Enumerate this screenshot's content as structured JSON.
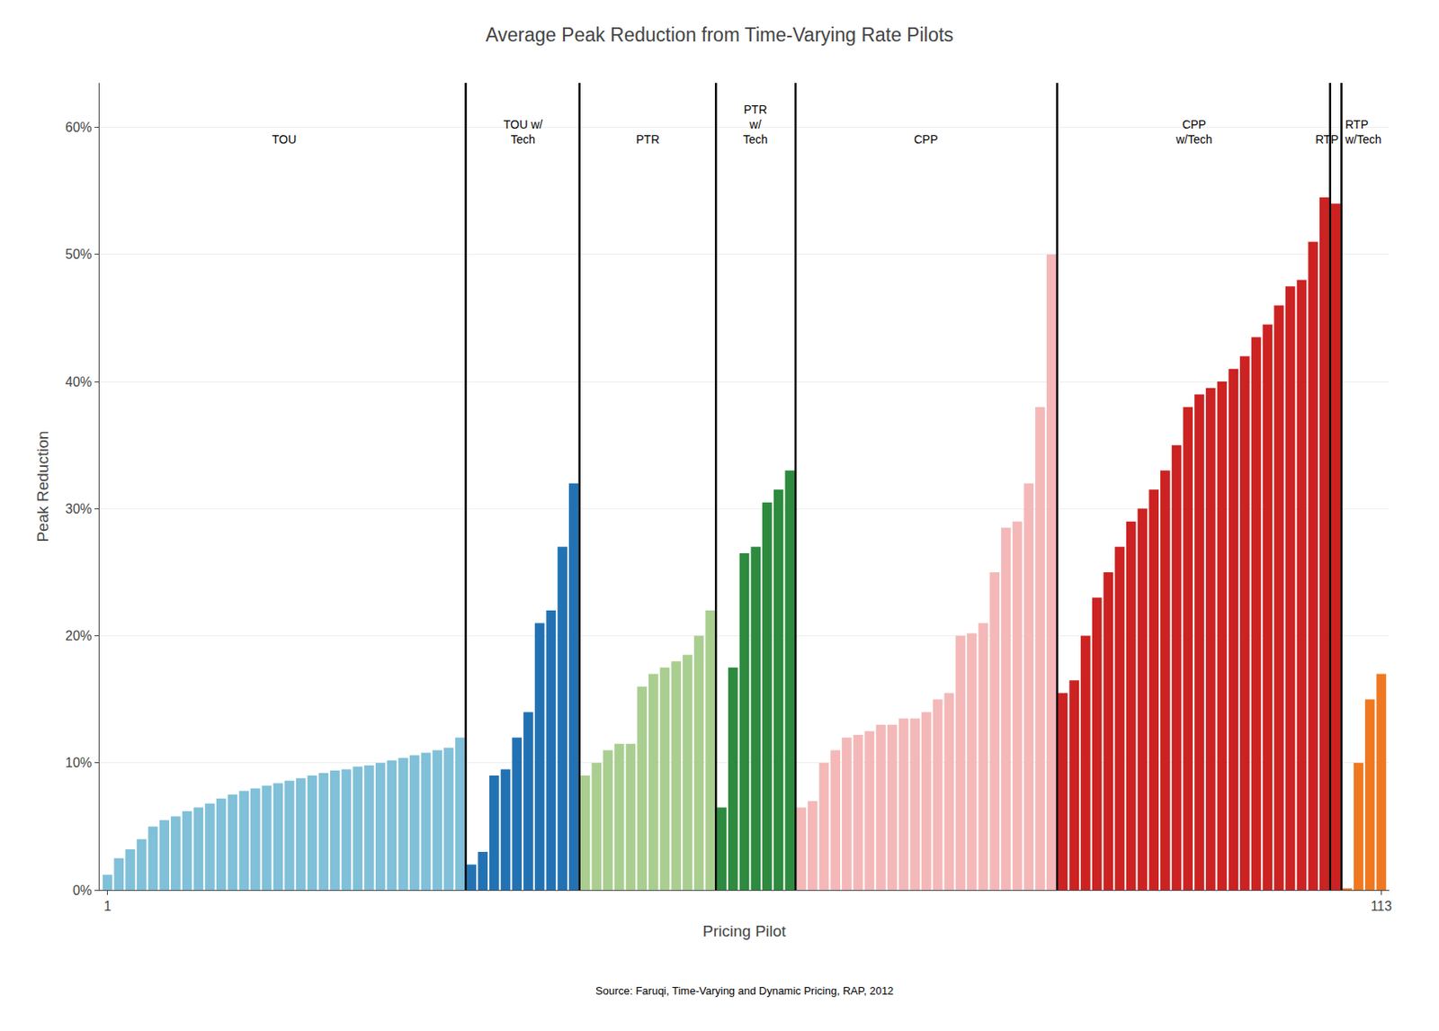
{
  "chart_data": {
    "type": "bar",
    "title": "Average Peak Reduction from Time-Varying Rate Pilots",
    "xlabel": "Pricing Pilot",
    "ylabel": "Peak Reduction",
    "ylim": [
      0,
      0.635
    ],
    "yticks": [
      {
        "value": 0.0,
        "label": "0%"
      },
      {
        "value": 0.1,
        "label": "10%"
      },
      {
        "value": 0.2,
        "label": "20%"
      },
      {
        "value": 0.3,
        "label": "30%"
      },
      {
        "value": 0.4,
        "label": "40%"
      },
      {
        "value": 0.5,
        "label": "50%"
      },
      {
        "value": 0.6,
        "label": "60%"
      }
    ],
    "grid": true,
    "annotations": [
      "Source: Faruqi, Time-Varying and Dynamic Pricing, RAP, 2012"
    ],
    "categories": [
      "1",
      null,
      null,
      null,
      null,
      null,
      null,
      null,
      null,
      null,
      null,
      null,
      null,
      null,
      null,
      null,
      null,
      null,
      null,
      null,
      null,
      null,
      null,
      null,
      null,
      null,
      null,
      null,
      null,
      null,
      null,
      null,
      null,
      null,
      null,
      null,
      null,
      null,
      null,
      null,
      null,
      null,
      null,
      null,
      null,
      null,
      null,
      null,
      null,
      null,
      null,
      null,
      null,
      null,
      null,
      null,
      null,
      null,
      null,
      null,
      null,
      null,
      null,
      null,
      null,
      null,
      null,
      null,
      null,
      null,
      null,
      null,
      null,
      null,
      null,
      null,
      null,
      null,
      null,
      null,
      null,
      null,
      null,
      null,
      null,
      null,
      null,
      null,
      null,
      null,
      null,
      null,
      null,
      null,
      null,
      null,
      null,
      null,
      null,
      null,
      null,
      null,
      null,
      null,
      null,
      null,
      null,
      null,
      null,
      null,
      null,
      null,
      "113"
    ],
    "series": [
      {
        "name": "TOU",
        "color": "#80c0d8",
        "values": [
          0.012,
          0.025,
          0.032,
          0.04,
          0.05,
          0.055,
          0.058,
          0.062,
          0.065,
          0.068,
          0.072,
          0.075,
          0.078,
          0.08,
          0.082,
          0.084,
          0.086,
          0.088,
          0.09,
          0.092,
          0.094,
          0.095,
          0.097,
          0.098,
          0.1,
          0.102,
          0.104,
          0.106,
          0.108,
          0.11,
          0.112,
          0.12,
          null,
          null,
          null,
          null,
          null,
          null,
          null,
          null,
          null,
          null,
          null,
          null,
          null,
          null,
          null,
          null,
          null,
          null,
          null,
          null,
          null,
          null,
          null,
          null,
          null,
          null,
          null,
          null,
          null,
          null,
          null,
          null,
          null,
          null,
          null,
          null,
          null,
          null,
          null,
          null,
          null,
          null,
          null,
          null,
          null,
          null,
          null,
          null,
          null,
          null,
          null,
          null,
          null,
          null,
          null,
          null,
          null,
          null,
          null,
          null,
          null,
          null,
          null,
          null,
          null,
          null,
          null,
          null,
          null,
          null,
          null,
          null,
          null,
          null,
          null,
          null,
          null,
          null,
          null,
          null,
          null
        ]
      },
      {
        "name": "TOU w/\nTech",
        "color": "#2272b3",
        "values": [
          null,
          null,
          null,
          null,
          null,
          null,
          null,
          null,
          null,
          null,
          null,
          null,
          null,
          null,
          null,
          null,
          null,
          null,
          null,
          null,
          null,
          null,
          null,
          null,
          null,
          null,
          null,
          null,
          null,
          null,
          null,
          null,
          0.02,
          0.03,
          0.09,
          0.095,
          0.12,
          0.14,
          0.21,
          0.22,
          0.27,
          0.32,
          null,
          null,
          null,
          null,
          null,
          null,
          null,
          null,
          null,
          null,
          null,
          null,
          null,
          null,
          null,
          null,
          null,
          null,
          null,
          null,
          null,
          null,
          null,
          null,
          null,
          null,
          null,
          null,
          null,
          null,
          null,
          null,
          null,
          null,
          null,
          null,
          null,
          null,
          null,
          null,
          null,
          null,
          null,
          null,
          null,
          null,
          null,
          null,
          null,
          null,
          null,
          null,
          null,
          null,
          null,
          null,
          null,
          null,
          null,
          null,
          null,
          null,
          null,
          null,
          null,
          null,
          null,
          null,
          null,
          null,
          null
        ]
      },
      {
        "name": "PTR",
        "color": "#aace90",
        "values": [
          null,
          null,
          null,
          null,
          null,
          null,
          null,
          null,
          null,
          null,
          null,
          null,
          null,
          null,
          null,
          null,
          null,
          null,
          null,
          null,
          null,
          null,
          null,
          null,
          null,
          null,
          null,
          null,
          null,
          null,
          null,
          null,
          null,
          null,
          null,
          null,
          null,
          null,
          null,
          null,
          null,
          null,
          0.09,
          0.1,
          0.11,
          0.115,
          0.115,
          0.16,
          0.17,
          0.175,
          0.18,
          0.185,
          0.2,
          0.22,
          null,
          null,
          null,
          null,
          null,
          null,
          null,
          null,
          null,
          null,
          null,
          null,
          null,
          null,
          null,
          null,
          null,
          null,
          null,
          null,
          null,
          null,
          null,
          null,
          null,
          null,
          null,
          null,
          null,
          null,
          null,
          null,
          null,
          null,
          null,
          null,
          null,
          null,
          null,
          null,
          null,
          null,
          null,
          null,
          null,
          null,
          null,
          null,
          null,
          null,
          null,
          null,
          null,
          null,
          null,
          null,
          null,
          null,
          null
        ]
      },
      {
        "name": "PTR\nw/\nTech",
        "color": "#2d8a3e",
        "values": [
          null,
          null,
          null,
          null,
          null,
          null,
          null,
          null,
          null,
          null,
          null,
          null,
          null,
          null,
          null,
          null,
          null,
          null,
          null,
          null,
          null,
          null,
          null,
          null,
          null,
          null,
          null,
          null,
          null,
          null,
          null,
          null,
          null,
          null,
          null,
          null,
          null,
          null,
          null,
          null,
          null,
          null,
          null,
          null,
          null,
          null,
          null,
          null,
          null,
          null,
          null,
          null,
          null,
          null,
          0.065,
          0.175,
          0.265,
          0.27,
          0.305,
          0.315,
          0.33,
          null,
          null,
          null,
          null,
          null,
          null,
          null,
          null,
          null,
          null,
          null,
          null,
          null,
          null,
          null,
          null,
          null,
          null,
          null,
          null,
          null,
          null,
          null,
          null,
          null,
          null,
          null,
          null,
          null,
          null,
          null,
          null,
          null,
          null,
          null,
          null,
          null,
          null,
          null,
          null,
          null,
          null,
          null,
          null,
          null,
          null,
          null,
          null,
          null,
          null,
          null,
          null
        ]
      },
      {
        "name": "CPP",
        "color": "#f4b8b8",
        "values": [
          null,
          null,
          null,
          null,
          null,
          null,
          null,
          null,
          null,
          null,
          null,
          null,
          null,
          null,
          null,
          null,
          null,
          null,
          null,
          null,
          null,
          null,
          null,
          null,
          null,
          null,
          null,
          null,
          null,
          null,
          null,
          null,
          null,
          null,
          null,
          null,
          null,
          null,
          null,
          null,
          null,
          null,
          null,
          null,
          null,
          null,
          null,
          null,
          null,
          null,
          null,
          null,
          null,
          null,
          null,
          null,
          null,
          null,
          null,
          null,
          null,
          0.065,
          0.07,
          0.1,
          0.11,
          0.12,
          0.122,
          0.125,
          0.13,
          0.13,
          0.135,
          0.135,
          0.14,
          0.15,
          0.155,
          0.2,
          0.202,
          0.21,
          0.25,
          0.285,
          0.29,
          0.32,
          0.38,
          0.5,
          null,
          null,
          null,
          null,
          null,
          null,
          null,
          null,
          null,
          null,
          null,
          null,
          null,
          null,
          null,
          null,
          null,
          null,
          null,
          null,
          null,
          null,
          null,
          null,
          null,
          null,
          null,
          null,
          null
        ]
      },
      {
        "name": "CPP\nw/Tech",
        "color": "#cc2222",
        "values": [
          null,
          null,
          null,
          null,
          null,
          null,
          null,
          null,
          null,
          null,
          null,
          null,
          null,
          null,
          null,
          null,
          null,
          null,
          null,
          null,
          null,
          null,
          null,
          null,
          null,
          null,
          null,
          null,
          null,
          null,
          null,
          null,
          null,
          null,
          null,
          null,
          null,
          null,
          null,
          null,
          null,
          null,
          null,
          null,
          null,
          null,
          null,
          null,
          null,
          null,
          null,
          null,
          null,
          null,
          null,
          null,
          null,
          null,
          null,
          null,
          null,
          null,
          null,
          null,
          null,
          null,
          null,
          null,
          null,
          null,
          null,
          null,
          null,
          null,
          null,
          null,
          null,
          null,
          null,
          null,
          null,
          null,
          null,
          null,
          0.155,
          0.165,
          0.2,
          0.23,
          0.25,
          0.27,
          0.29,
          0.3,
          0.315,
          0.33,
          0.35,
          0.38,
          0.39,
          0.395,
          0.4,
          0.41,
          0.42,
          0.435,
          0.445,
          0.46,
          0.475,
          0.48,
          0.51,
          0.545,
          null,
          null,
          null,
          null,
          null
        ]
      },
      {
        "name": "RTP",
        "color": "#cc2222",
        "values": [
          null,
          null,
          null,
          null,
          null,
          null,
          null,
          null,
          null,
          null,
          null,
          null,
          null,
          null,
          null,
          null,
          null,
          null,
          null,
          null,
          null,
          null,
          null,
          null,
          null,
          null,
          null,
          null,
          null,
          null,
          null,
          null,
          null,
          null,
          null,
          null,
          null,
          null,
          null,
          null,
          null,
          null,
          null,
          null,
          null,
          null,
          null,
          null,
          null,
          null,
          null,
          null,
          null,
          null,
          null,
          null,
          null,
          null,
          null,
          null,
          null,
          null,
          null,
          null,
          null,
          null,
          null,
          null,
          null,
          null,
          null,
          null,
          null,
          null,
          null,
          null,
          null,
          null,
          null,
          null,
          null,
          null,
          null,
          null,
          null,
          null,
          null,
          null,
          null,
          null,
          null,
          null,
          null,
          null,
          null,
          null,
          null,
          null,
          null,
          null,
          null,
          null,
          null,
          null,
          null,
          null,
          null,
          null,
          0.54,
          null,
          null,
          null,
          null
        ]
      },
      {
        "name": "RTP\nw/Tech",
        "color": "#f07820",
        "values": [
          null,
          null,
          null,
          null,
          null,
          null,
          null,
          null,
          null,
          null,
          null,
          null,
          null,
          null,
          null,
          null,
          null,
          null,
          null,
          null,
          null,
          null,
          null,
          null,
          null,
          null,
          null,
          null,
          null,
          null,
          null,
          null,
          null,
          null,
          null,
          null,
          null,
          null,
          null,
          null,
          null,
          null,
          null,
          null,
          null,
          null,
          null,
          null,
          null,
          null,
          null,
          null,
          null,
          null,
          null,
          null,
          null,
          null,
          null,
          null,
          null,
          null,
          null,
          null,
          null,
          null,
          null,
          null,
          null,
          null,
          null,
          null,
          null,
          null,
          null,
          null,
          null,
          null,
          null,
          null,
          null,
          null,
          null,
          null,
          null,
          null,
          null,
          null,
          null,
          null,
          null,
          null,
          null,
          null,
          null,
          null,
          null,
          null,
          null,
          null,
          null,
          null,
          null,
          null,
          null,
          null,
          null,
          null,
          null,
          0.001,
          0.1,
          0.15,
          0.17
        ]
      }
    ]
  }
}
